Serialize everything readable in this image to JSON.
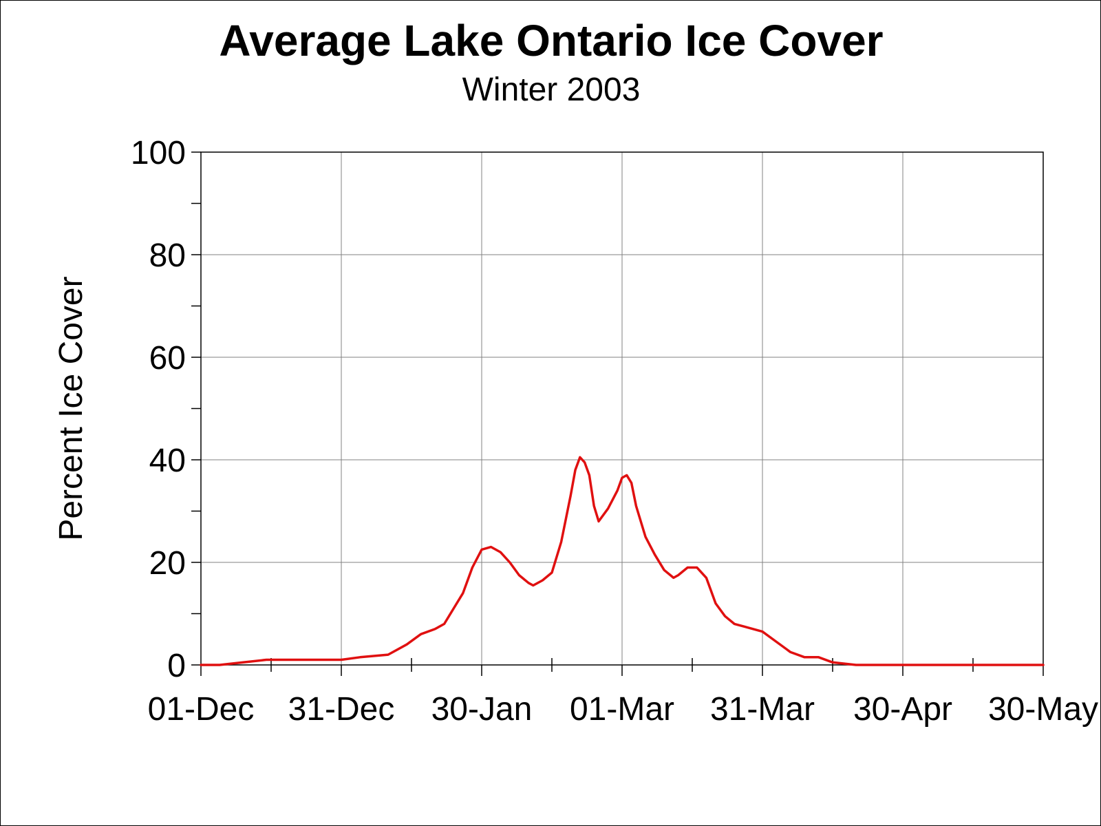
{
  "chart_data": {
    "type": "line",
    "title": "Average Lake Ontario Ice Cover",
    "subtitle": "Winter 2003",
    "xlabel": "",
    "ylabel": "Percent Ice Cover",
    "x_start_date": "01-Dec",
    "xlim": [
      "01-Dec",
      "30-May"
    ],
    "ylim": [
      0,
      100
    ],
    "grid": true,
    "x_tick_labels": [
      "01-Dec",
      "31-Dec",
      "30-Jan",
      "01-Mar",
      "31-Mar",
      "30-Apr",
      "30-May"
    ],
    "y_tick_labels": [
      "0",
      "20",
      "40",
      "60",
      "80",
      "100"
    ],
    "series_color": "#e01010",
    "series": [
      {
        "x": [
          "01-Dec",
          "05-Dec",
          "10-Dec",
          "15-Dec",
          "20-Dec",
          "25-Dec",
          "31-Dec",
          "04-Jan",
          "10-Jan",
          "14-Jan",
          "17-Jan",
          "20-Jan",
          "22-Jan",
          "24-Jan",
          "26-Jan",
          "28-Jan",
          "30-Jan",
          "01-Feb",
          "03-Feb",
          "05-Feb",
          "07-Feb",
          "09-Feb",
          "10-Feb",
          "12-Feb",
          "14-Feb",
          "16-Feb",
          "18-Feb",
          "19-Feb",
          "20-Feb",
          "21-Feb",
          "22-Feb",
          "23-Feb",
          "24-Feb",
          "26-Feb",
          "28-Feb",
          "01-Mar",
          "02-Mar",
          "03-Mar",
          "04-Mar",
          "06-Mar",
          "08-Mar",
          "10-Mar",
          "12-Mar",
          "13-Mar",
          "15-Mar",
          "17-Mar",
          "19-Mar",
          "21-Mar",
          "23-Mar",
          "25-Mar",
          "27-Mar",
          "31-Mar",
          "03-Apr",
          "06-Apr",
          "09-Apr",
          "12-Apr",
          "15-Apr",
          "20-Apr",
          "25-Apr",
          "30-Apr",
          "10-May",
          "20-May",
          "30-May"
        ],
        "values": [
          0,
          0,
          0.5,
          1,
          1,
          1,
          1,
          1.5,
          2,
          4,
          6,
          7,
          8,
          11,
          14,
          19,
          22.5,
          23,
          22,
          20,
          17.5,
          16,
          15.5,
          16.5,
          18,
          24,
          33,
          38,
          40.5,
          39.5,
          37,
          31,
          28,
          30.5,
          34,
          36.5,
          37,
          35.5,
          31,
          25,
          21.5,
          18.5,
          17,
          17.5,
          19,
          19,
          17,
          12,
          9.5,
          8,
          7.5,
          6.5,
          4.5,
          2.5,
          1.5,
          1.5,
          0.5,
          0,
          0,
          0,
          0,
          0,
          0
        ]
      }
    ]
  }
}
